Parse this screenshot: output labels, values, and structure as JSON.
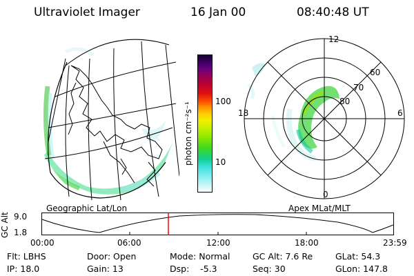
{
  "header": {
    "title": "Ultraviolet Imager",
    "date": "16 Jan 00",
    "time": "08:40:48 UT"
  },
  "left_panel": {
    "caption": "Geographic Lat/Lon"
  },
  "right_panel": {
    "caption": "Apex MLat/MLT",
    "mlt_labels": {
      "top": "12",
      "left": "18",
      "right": "6",
      "bottom": "0"
    },
    "lat_labels": [
      "60",
      "70",
      "80"
    ]
  },
  "colorbar": {
    "label": "photon cm⁻²s⁻¹",
    "ticks": [
      "100",
      "10"
    ],
    "colors": [
      "#1a0030",
      "#3a0060",
      "#6a0080",
      "#9a0050",
      "#c00030",
      "#e01010",
      "#ff5000",
      "#ff9000",
      "#ffd000",
      "#f0f000",
      "#c8f000",
      "#90e800",
      "#40d820",
      "#10d090",
      "#40e0e0",
      "#90f0f0",
      "#d0f8f8"
    ]
  },
  "altitude_strip": {
    "axis_label": "GC Alt",
    "ymax_label": "9.0",
    "ymin_label": "1.8",
    "time_ticks": [
      "00:00",
      "06:00",
      "12:00",
      "18:00",
      "23:59"
    ],
    "marker_color": "#ff0000"
  },
  "status": {
    "row1": {
      "flt": "Flt: LBHS",
      "door": "Door: Open",
      "mode": "Mode: Normal",
      "gc_alt": "GC Alt: 7.6 Re",
      "glat": "GLat:  54.3"
    },
    "row2": {
      "ip": "IP: 18.0",
      "gain": "Gain: 13",
      "dsp": "Dsp:    -5.3",
      "seq": "Seq: 30",
      "glon": "GLon: 147.8"
    }
  }
}
